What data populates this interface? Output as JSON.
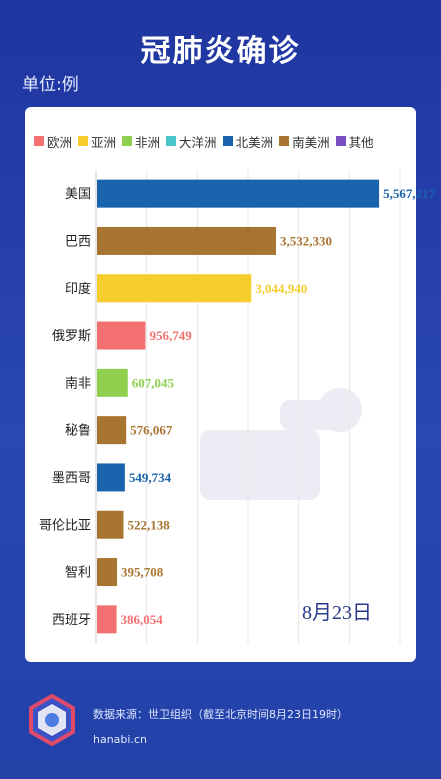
{
  "header": {
    "title": "冠肺炎确诊",
    "unit": "单位:例"
  },
  "legend": [
    {
      "label": "欧洲",
      "color": "#f2706f"
    },
    {
      "label": "亚洲",
      "color": "#f5cd2c"
    },
    {
      "label": "非洲",
      "color": "#8fd14f"
    },
    {
      "label": "大洋洲",
      "color": "#49c5c9"
    },
    {
      "label": "北美洲",
      "color": "#1a63ad"
    },
    {
      "label": "南美洲",
      "color": "#a87530"
    },
    {
      "label": "其他",
      "color": "#7b4fc4"
    }
  ],
  "chart_data": {
    "type": "bar",
    "orientation": "horizontal",
    "title": "冠肺炎确诊",
    "ylabel": "",
    "xlabel": "",
    "unit": "单位:例",
    "categories": [
      "美国",
      "巴西",
      "印度",
      "俄罗斯",
      "南非",
      "秘鲁",
      "墨西哥",
      "哥伦比亚",
      "智利",
      "西班牙"
    ],
    "values": [
      5567217,
      3532330,
      3044940,
      956749,
      607045,
      576067,
      549734,
      522138,
      395708,
      386054
    ],
    "value_labels": [
      "5,567,217",
      "3,532,330",
      "3,044,940",
      "956,749",
      "607,045",
      "576,067",
      "549,734",
      "522,138",
      "395,708",
      "386,054"
    ],
    "regions": [
      "北美洲",
      "南美洲",
      "亚洲",
      "欧洲",
      "非洲",
      "南美洲",
      "北美洲",
      "南美洲",
      "南美洲",
      "欧洲"
    ],
    "xlim": [
      0,
      6000000
    ],
    "grid": true,
    "legend_position": "top"
  },
  "annotation": {
    "date": "8月23日"
  },
  "footer": {
    "source": "数据来源：世卫组织（截至北京时间8月23日19时）",
    "site": "hanabi.cn"
  }
}
